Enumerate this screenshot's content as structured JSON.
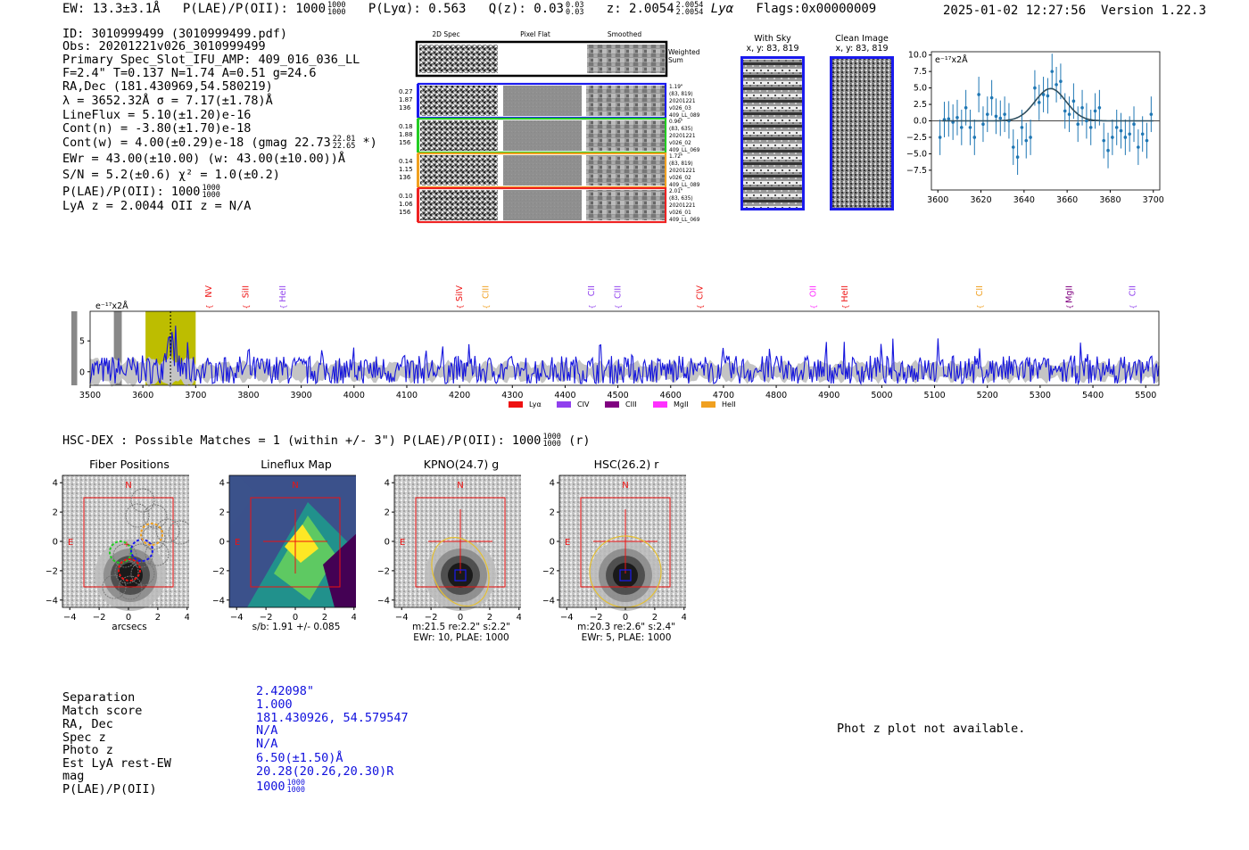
{
  "header": {
    "ew": "EW: 13.3±3.1Å",
    "plae_label": "P(LAE)/P(OII): 1000",
    "plae_hi": "1000",
    "plae_lo": "1000",
    "plya": "P(Lyα): 0.563",
    "qz": "Q(z): 0.03",
    "qz_hi": "0.03",
    "qz_lo": "0.03",
    "z": "z: 2.0054",
    "z_hi": "2.0054",
    "z_lo": "2.0054",
    "z_line": "Lyα",
    "flags": "Flags:0x00000009",
    "datetime": "2025-01-02 12:27:56",
    "version": "Version 1.22.3"
  },
  "info": {
    "lines": [
      "ID: 3010999499 (3010999499.pdf)",
      "Obs: 20201221v026_3010999499",
      "Primary Spec_Slot_IFU_AMP: 409_016_036_LL",
      "F=2.4\"  T=0.137  N=1.74  A=0.51  g=24.6",
      "RA,Dec (181.430969,54.580219)",
      "λ = 3652.32Å  σ = 7.17(±1.78)Å",
      "LineFlux = 5.10(±1.20)e-16",
      "Cont(n) = -3.80(±1.70)e-18",
      "Cont(w) = 4.00(±0.29)e-18 (gmag 22.73",
      "EWr = 43.00(±10.00) (w: 43.00(±10.00))Å",
      "S/N = 5.2(±0.6)  χ² = 1.0(±0.2)",
      "P(LAE)/P(OII): 1000",
      "LyA z = 2.0044  OII z = N/A"
    ],
    "gmag_hi": "22.81",
    "gmag_lo": "22.65",
    "gmag_tail": "*)",
    "plae_hi": "1000",
    "plae_lo": "1000"
  },
  "cutouts": {
    "col_titles": [
      "2D Spec",
      "Pixel Flat",
      "Smoothed"
    ],
    "weighted_label": "Weighted Sum",
    "rows": [
      {
        "l1": "0.27",
        "l2": "1.87",
        "l3": "136",
        "r1": "1.19\"",
        "r2": "(83, 819)",
        "r3": "20201221",
        "r4": "v026_03",
        "r5": "409_LL_089",
        "color": "#1a1aee"
      },
      {
        "l1": "0.18",
        "l2": "1.88",
        "l3": "156",
        "r1": "0.96\"",
        "r2": "(83, 635)",
        "r3": "20201221",
        "r4": "v026_02",
        "r5": "409_LL_069",
        "color": "#22cc22"
      },
      {
        "l1": "0.14",
        "l2": "1.15",
        "l3": "136",
        "r1": "1.72\"",
        "r2": "(83, 819)",
        "r3": "20201221",
        "r4": "v026_02",
        "r5": "409_LL_089",
        "color": "#f0a020"
      },
      {
        "l1": "0.10",
        "l2": "1.06",
        "l3": "156",
        "r1": "2.01\"",
        "r2": "(83, 635)",
        "r3": "20201221",
        "r4": "v026_01",
        "r5": "409_LL_069",
        "color": "#ee2222"
      }
    ],
    "with_sky_title": "With Sky",
    "with_sky_xy": "x, y: 83, 819",
    "clean_title": "Clean Image",
    "clean_xy": "x, y: 83, 819"
  },
  "legend": {
    "items": [
      {
        "name": "Lyα",
        "color": "#ee1111"
      },
      {
        "name": "CIV",
        "color": "#9040ee"
      },
      {
        "name": "CIII",
        "color": "#800080"
      },
      {
        "name": "MgII",
        "color": "#ff30ff"
      },
      {
        "name": "HeII",
        "color": "#f0a020"
      }
    ]
  },
  "hsc": {
    "title": "HSC-DEX : Possible Matches = 1 (within +/- 3\")  P(LAE)/P(OII): 1000",
    "plae_hi": "1000",
    "plae_lo": "1000",
    "tail": "(r)",
    "panels": [
      {
        "title": "Fiber Positions",
        "c1": "arcsecs",
        "c2": "",
        "c3": ""
      },
      {
        "title": "Lineflux Map",
        "c1": "s/b: 1.91 +/- 0.085",
        "c2": "",
        "c3": ""
      },
      {
        "title": "KPNO(24.7) g",
        "c1": "m:21.5  re:2.2\"  s:2.2\"",
        "c2": "EWr: 10, PLAE: 1000",
        "c3": ""
      },
      {
        "title": "HSC(26.2) r",
        "c1": "m:20.3  re:2.6\"  s:2.4\"",
        "c2": "EWr: 5, PLAE: 1000",
        "c3": ""
      }
    ],
    "compass_n": "N",
    "compass_e": "E",
    "ticks": [
      "4",
      "2",
      "0",
      "−2",
      "−4"
    ],
    "xticks": [
      "−4",
      "−2",
      "0",
      "2",
      "4"
    ]
  },
  "match": {
    "labels": [
      "Separation",
      "Match score",
      "RA, Dec",
      "Spec z",
      "Photo z",
      "Est LyA rest-EW",
      "mag",
      "P(LAE)/P(OII)"
    ],
    "values": [
      "2.42098\"",
      "1.000",
      "181.430926, 54.579547",
      "N/A",
      "N/A",
      "6.50(±1.50)Å",
      "20.28(20.26,20.30)R",
      "1000"
    ],
    "plae_hi": "1000",
    "plae_lo": "1000",
    "photz_note": "Phot z plot not available."
  },
  "chart_data": [
    {
      "type": "scatter",
      "title": "Line fit",
      "unit_label": "e⁻¹⁷x2Å",
      "x_range": [
        3597,
        3703
      ],
      "ylim": [
        -10.5,
        10.5
      ],
      "xticks": [
        3600,
        3620,
        3640,
        3660,
        3680,
        3700
      ],
      "yticks": [
        10.0,
        7.5,
        5.0,
        2.5,
        0.0,
        -2.5,
        -5.0,
        -7.5
      ],
      "points_x": [
        3601,
        3603,
        3605,
        3607,
        3609,
        3611,
        3613,
        3615,
        3617,
        3619,
        3621,
        3623,
        3625,
        3627,
        3629,
        3631,
        3633,
        3635,
        3637,
        3639,
        3641,
        3643,
        3645,
        3647,
        3649,
        3651,
        3653,
        3655,
        3657,
        3659,
        3661,
        3663,
        3665,
        3667,
        3669,
        3671,
        3673,
        3675,
        3677,
        3679,
        3681,
        3683,
        3685,
        3687,
        3689,
        3691,
        3693,
        3695,
        3697,
        3699
      ],
      "points_y": [
        -2.5,
        0.2,
        0.3,
        -0.2,
        0.5,
        -1.0,
        2.0,
        -1.0,
        -2.5,
        4.0,
        -0.5,
        1.0,
        3.5,
        0.7,
        0.4,
        1.0,
        0.0,
        -4.0,
        -5.5,
        -1.0,
        -3.0,
        -2.5,
        5.0,
        2.8,
        4.0,
        3.8,
        7.5,
        5.5,
        6.0,
        1.5,
        1.0,
        3.0,
        -0.5,
        2.0,
        0.0,
        -1.0,
        1.5,
        2.0,
        -3.0,
        -4.5,
        -2.5,
        -1.0,
        -1.5,
        -2.5,
        -2.0,
        -0.5,
        -4.0,
        -2.0,
        -3.0,
        1.0
      ],
      "fit_center": 3652.3,
      "fit_sigma": 7.17,
      "fit_amp": 4.9
    },
    {
      "type": "line",
      "title": "Full spectrum",
      "unit_label": "e⁻¹⁷x2Å",
      "xlim": [
        3500,
        5525
      ],
      "ylim": [
        -2.2,
        9.8
      ],
      "xticks": [
        3500,
        3600,
        3700,
        3800,
        3900,
        4000,
        4100,
        4200,
        4300,
        4400,
        4500,
        4600,
        4700,
        4800,
        4900,
        5000,
        5100,
        5200,
        5300,
        5400,
        5500
      ],
      "yticks": [
        0,
        5
      ],
      "highlight_range": [
        3605,
        3700
      ],
      "line_marker": 3652.3,
      "gray_bands": [
        [
          3545,
          3560
        ],
        [
          3462,
          3474
        ]
      ],
      "lines": [
        {
          "name": "NV",
          "x": 3725,
          "color": "#ee1111"
        },
        {
          "name": "SiII",
          "x": 3795,
          "color": "#ee1111"
        },
        {
          "name": "HeII",
          "x": 3865,
          "color": "#9040ee"
        },
        {
          "name": "SiIV",
          "x": 4200,
          "color": "#ee1111"
        },
        {
          "name": "CIII",
          "x": 4250,
          "color": "#f0a020"
        },
        {
          "name": "CII",
          "x": 4450,
          "color": "#9040ee"
        },
        {
          "name": "CIII",
          "x": 4500,
          "color": "#9040ee"
        },
        {
          "name": "CIV",
          "x": 4655,
          "color": "#ee1111"
        },
        {
          "name": "OII",
          "x": 4870,
          "color": "#ff30ff"
        },
        {
          "name": "HeII",
          "x": 4930,
          "color": "#ee1111"
        },
        {
          "name": "CII",
          "x": 5185,
          "color": "#f0a020"
        },
        {
          "name": "MgII",
          "x": 5355,
          "color": "#800080"
        },
        {
          "name": "CII",
          "x": 5475,
          "color": "#9040ee"
        }
      ]
    }
  ]
}
